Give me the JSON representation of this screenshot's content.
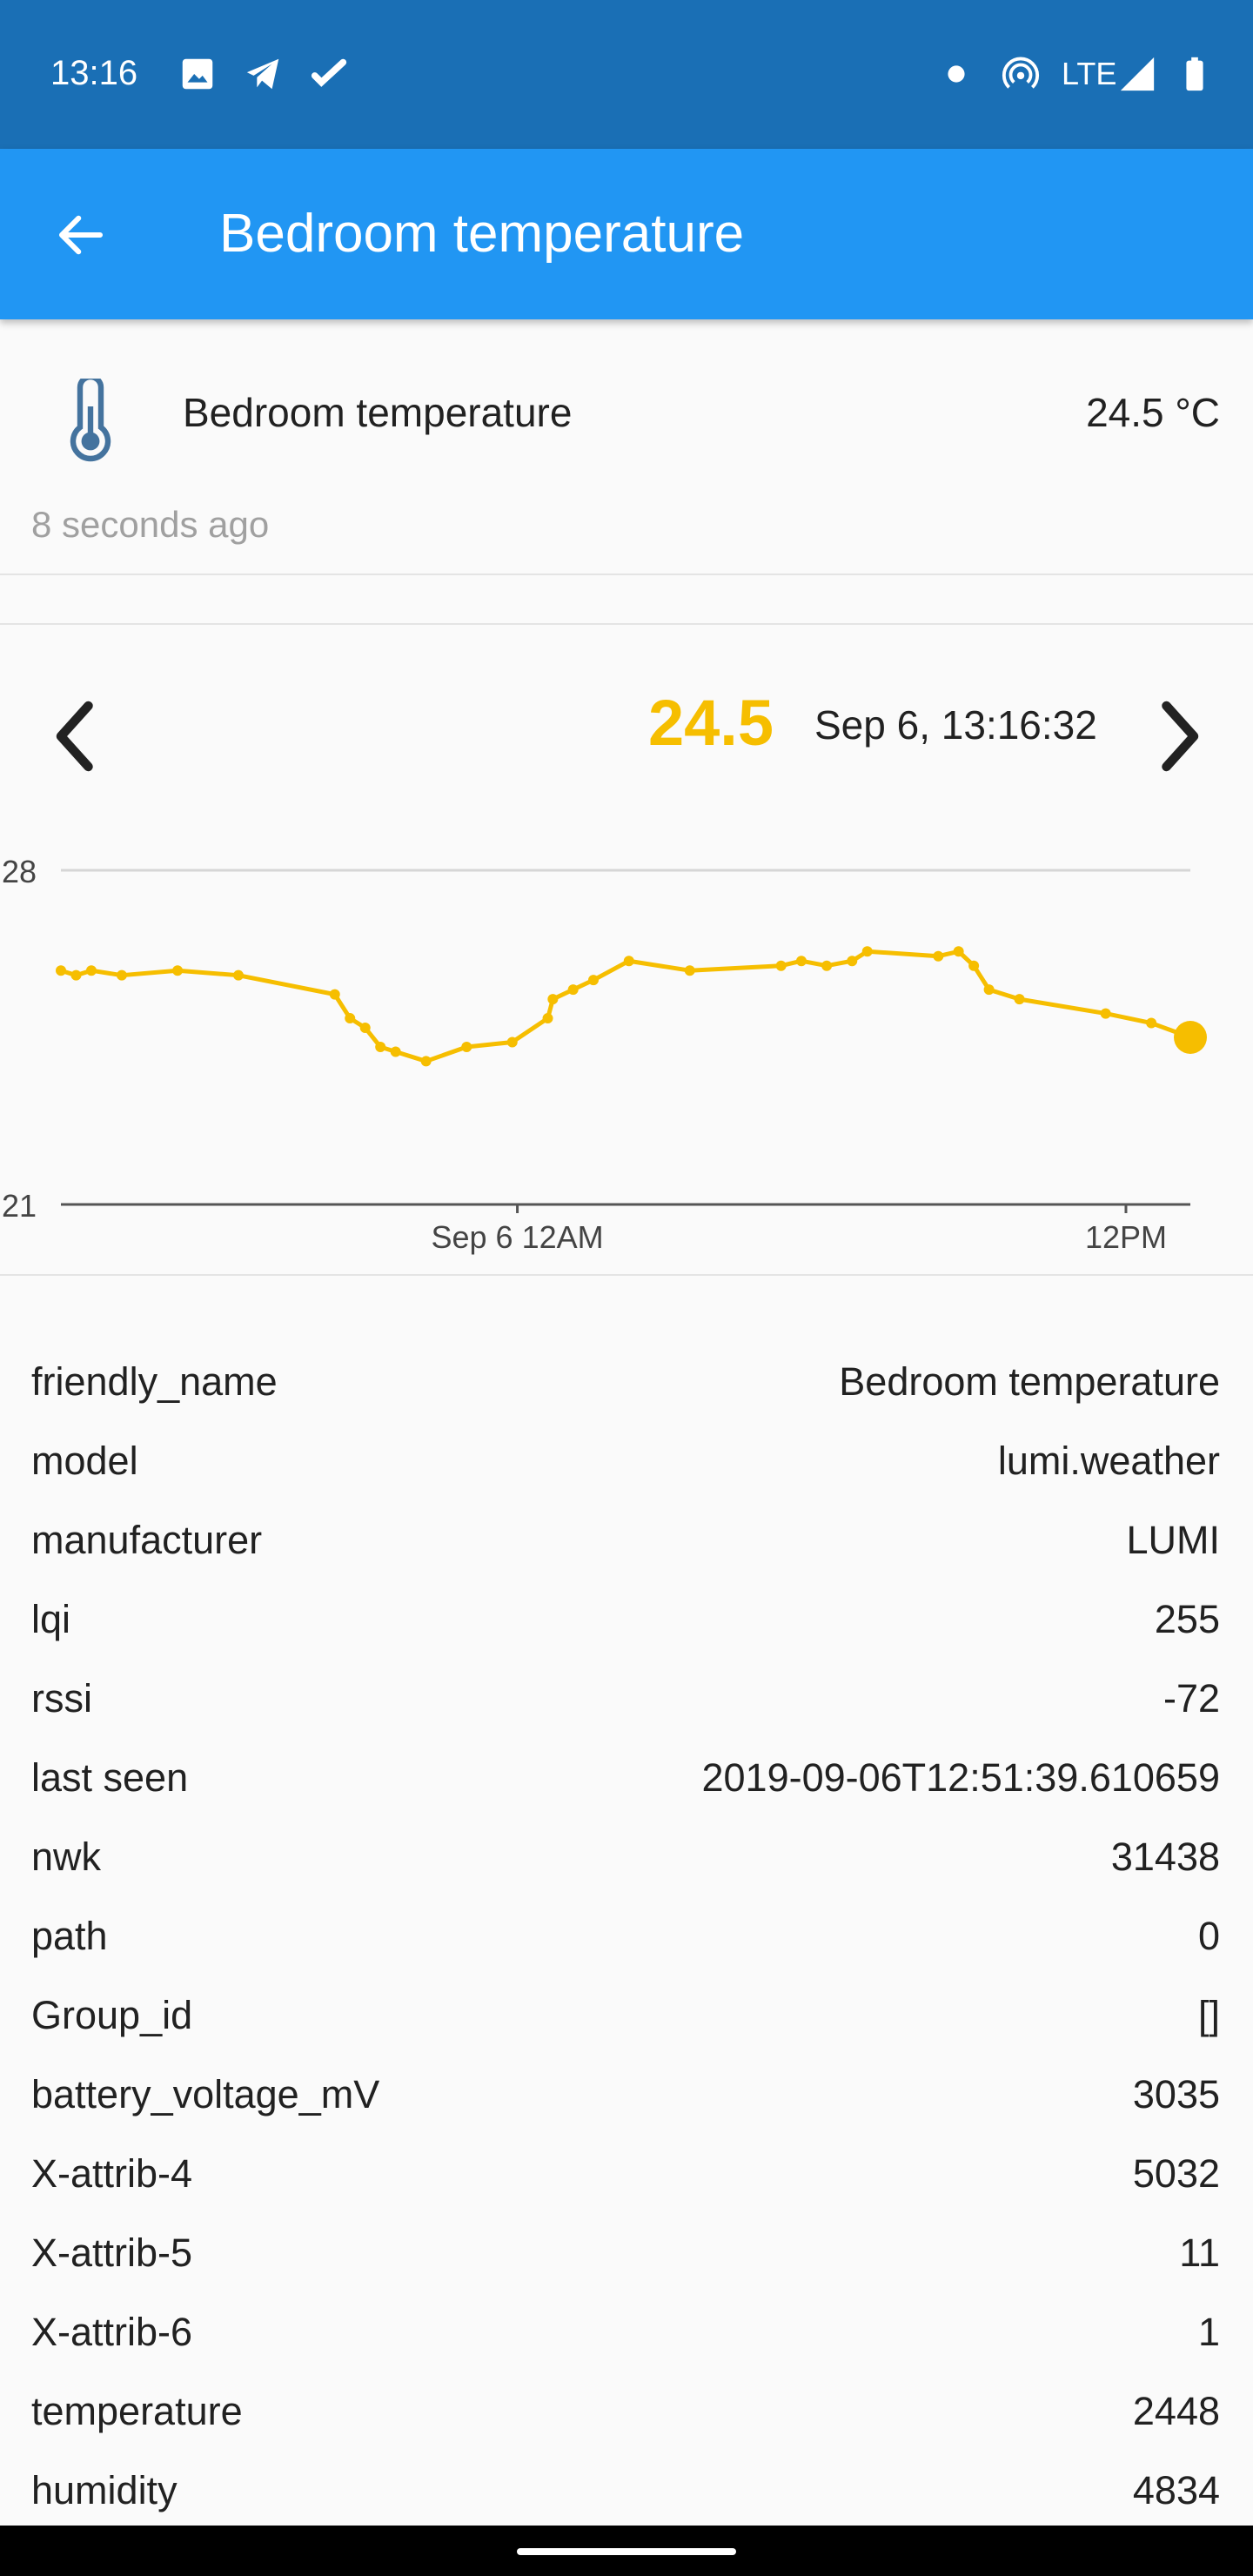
{
  "status_bar": {
    "time": "13:16",
    "left_icons": [
      "image-icon",
      "telegram-icon",
      "check-icon"
    ],
    "right_icons": [
      "dot-icon",
      "hotspot-icon",
      "lte-signal-icon",
      "battery-icon"
    ],
    "network": "LTE"
  },
  "app_bar": {
    "back_icon": "arrow-back-icon",
    "title": "Bedroom temperature"
  },
  "entity": {
    "icon": "thermometer-icon",
    "name": "Bedroom temperature",
    "state": "24.5 °C",
    "last_updated": "8 seconds ago"
  },
  "chart_header": {
    "prev_icon": "chevron-left-icon",
    "next_icon": "chevron-right-icon",
    "current_value": "24.5",
    "current_time": "Sep 6, 13:16:32"
  },
  "chart_data": {
    "type": "line",
    "title": "",
    "xlabel": "",
    "ylabel": "",
    "ylim": [
      21,
      28
    ],
    "y_ticks": [
      "28",
      "21"
    ],
    "x_ticks": [
      {
        "label": "Sep 6 12AM",
        "t": 0
      },
      {
        "label": "12PM",
        "t": 12
      }
    ],
    "xlim_hours": [
      -9.0,
      13.27
    ],
    "grid": true,
    "color": "#f6be00",
    "series": [
      {
        "name": "",
        "x_hours_from_sep6_midnight": [
          -9.0,
          -8.7,
          -8.4,
          -7.8,
          -6.7,
          -5.5,
          -3.6,
          -3.3,
          -3.0,
          -2.7,
          -2.4,
          -1.8,
          -1.0,
          -0.1,
          0.6,
          0.7,
          1.1,
          1.5,
          2.2,
          3.4,
          5.2,
          5.6,
          6.1,
          6.6,
          6.9,
          8.3,
          8.7,
          9.0,
          9.3,
          9.9,
          11.6,
          12.5,
          13.27
        ],
        "values": [
          25.9,
          25.8,
          25.9,
          25.8,
          25.9,
          25.8,
          25.4,
          24.9,
          24.7,
          24.3,
          24.2,
          24.0,
          24.3,
          24.4,
          24.9,
          25.3,
          25.5,
          25.7,
          26.1,
          25.9,
          26.0,
          26.1,
          26.0,
          26.1,
          26.3,
          26.2,
          26.3,
          26.0,
          25.5,
          25.3,
          25.0,
          24.8,
          24.5
        ]
      }
    ]
  },
  "attributes": [
    {
      "key": "friendly_name",
      "value": "Bedroom temperature"
    },
    {
      "key": "model",
      "value": "lumi.weather"
    },
    {
      "key": "manufacturer",
      "value": "LUMI"
    },
    {
      "key": "lqi",
      "value": "255"
    },
    {
      "key": "rssi",
      "value": "-72"
    },
    {
      "key": "last seen",
      "value": "2019-09-06T12:51:39.610659"
    },
    {
      "key": "nwk",
      "value": "31438"
    },
    {
      "key": "path",
      "value": "0"
    },
    {
      "key": "Group_id",
      "value": "[]"
    },
    {
      "key": "battery_voltage_mV",
      "value": "3035"
    },
    {
      "key": "X-attrib-4",
      "value": "5032"
    },
    {
      "key": "X-attrib-5",
      "value": "11"
    },
    {
      "key": "X-attrib-6",
      "value": "1"
    },
    {
      "key": "temperature",
      "value": "2448"
    },
    {
      "key": "humidity",
      "value": "4834"
    }
  ]
}
